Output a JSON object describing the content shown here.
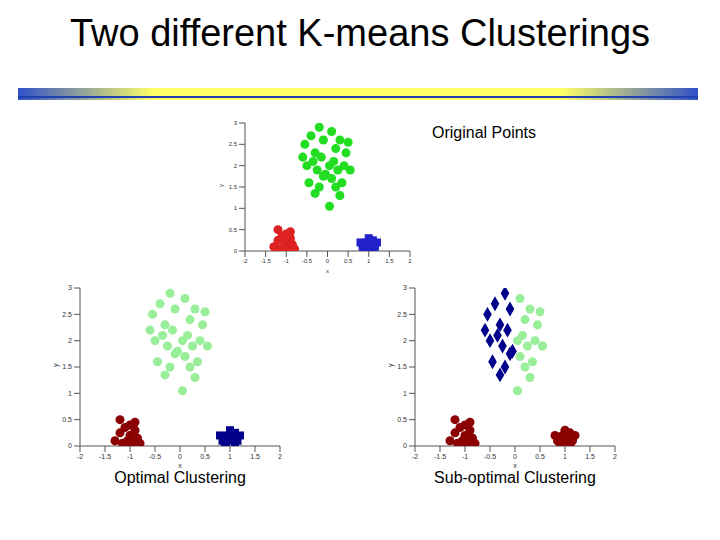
{
  "slide_title": "Two different K-means Clusterings",
  "chart_data": [
    {
      "type": "scatter",
      "title": "Original Points",
      "x_label": "x",
      "y_label": "y",
      "xlim": [
        -2,
        2
      ],
      "ylim": [
        0,
        3
      ],
      "xticks": [
        -2,
        -1.5,
        -1,
        -0.5,
        0,
        0.5,
        1,
        1.5,
        2
      ],
      "yticks": [
        0,
        0.5,
        1,
        1.5,
        2,
        2.5,
        3
      ],
      "series": [
        {
          "color": "#22dd22",
          "marker": "circle",
          "x": [
            -0.55,
            -0.4,
            -0.3,
            -0.2,
            -0.1,
            -0.5,
            -0.35,
            -0.25,
            -0.15,
            -0.05,
            -0.45,
            -0.2,
            -0.1,
            -0.6,
            -0.3,
            0.1,
            0.2,
            0.3,
            0.45,
            0.05,
            0.15,
            0.25,
            0.4,
            0.55,
            0.1,
            0.2,
            0.35,
            0.5,
            0.3,
            0.05
          ],
          "values": [
            2.5,
            2.7,
            2.3,
            2.9,
            2.6,
            2.0,
            2.1,
            1.9,
            2.2,
            1.8,
            1.6,
            1.5,
            1.75,
            2.2,
            1.35,
            2.8,
            2.4,
            2.6,
            2.3,
            2.0,
            2.1,
            1.9,
            2.0,
            1.9,
            1.7,
            1.5,
            1.6,
            2.55,
            1.3,
            1.05
          ]
        },
        {
          "color": "#dd2222",
          "marker": "circle",
          "x": [
            -1.2,
            -1.1,
            -1.0,
            -0.9,
            -1.05,
            -0.95,
            -1.15,
            -0.85,
            -1.0,
            -1.3,
            -0.8,
            -1.1,
            -0.9,
            -1.2
          ],
          "values": [
            0.25,
            0.35,
            0.2,
            0.3,
            0.1,
            0.05,
            0.05,
            0.15,
            0.4,
            0.1,
            0.05,
            0.02,
            0.45,
            0.5
          ]
        },
        {
          "color": "#2222cc",
          "marker": "square",
          "x": [
            0.9,
            1.0,
            1.1,
            0.95,
            1.05,
            1.15,
            0.85,
            1.0,
            1.2,
            0.92,
            1.1,
            0.8
          ],
          "values": [
            0.05,
            0.1,
            0.03,
            0.2,
            0.15,
            0.1,
            0.1,
            0.3,
            0.2,
            0.02,
            0.25,
            0.2
          ]
        }
      ]
    },
    {
      "type": "scatter",
      "title": "Optimal Clustering",
      "x_label": "x",
      "y_label": "y",
      "xlim": [
        -2,
        2
      ],
      "ylim": [
        0,
        3
      ],
      "xticks": [
        -2,
        -1.5,
        -1,
        -0.5,
        0,
        0.5,
        1,
        1.5,
        2
      ],
      "yticks": [
        0,
        0.5,
        1,
        1.5,
        2,
        2.5,
        3
      ],
      "series": [
        {
          "color": "#99ee99",
          "marker": "circle",
          "x": [
            -0.55,
            -0.4,
            -0.3,
            -0.2,
            -0.1,
            -0.5,
            -0.35,
            -0.25,
            -0.15,
            -0.05,
            -0.45,
            -0.2,
            -0.1,
            -0.6,
            -0.3,
            0.1,
            0.2,
            0.3,
            0.45,
            0.05,
            0.15,
            0.25,
            0.4,
            0.55,
            0.1,
            0.2,
            0.35,
            0.5,
            0.3,
            0.05
          ],
          "values": [
            2.5,
            2.7,
            2.3,
            2.9,
            2.6,
            2.0,
            2.1,
            1.9,
            2.2,
            1.8,
            1.6,
            1.5,
            1.75,
            2.2,
            1.35,
            2.8,
            2.4,
            2.6,
            2.3,
            2.0,
            2.1,
            1.9,
            2.0,
            1.9,
            1.7,
            1.5,
            1.6,
            2.55,
            1.3,
            1.05
          ]
        },
        {
          "color": "#8b0000",
          "marker": "circle",
          "x": [
            -1.2,
            -1.1,
            -1.0,
            -0.9,
            -1.05,
            -0.95,
            -1.15,
            -0.85,
            -1.0,
            -1.3,
            -0.8,
            -1.1,
            -0.9,
            -1.2
          ],
          "values": [
            0.25,
            0.35,
            0.2,
            0.3,
            0.1,
            0.05,
            0.05,
            0.15,
            0.4,
            0.1,
            0.05,
            0.02,
            0.45,
            0.5
          ]
        },
        {
          "color": "#00008b",
          "marker": "square",
          "x": [
            0.9,
            1.0,
            1.1,
            0.95,
            1.05,
            1.15,
            0.85,
            1.0,
            1.2,
            0.92,
            1.1,
            0.8
          ],
          "values": [
            0.05,
            0.1,
            0.03,
            0.2,
            0.15,
            0.1,
            0.1,
            0.3,
            0.2,
            0.02,
            0.25,
            0.2
          ]
        }
      ]
    },
    {
      "type": "scatter",
      "title": "Sub-optimal Clustering",
      "x_label": "x",
      "y_label": "y",
      "xlim": [
        -2,
        2
      ],
      "ylim": [
        0,
        3
      ],
      "xticks": [
        -2,
        -1.5,
        -1,
        -0.5,
        0,
        0.5,
        1,
        1.5,
        2
      ],
      "yticks": [
        0,
        0.5,
        1,
        1.5,
        2,
        2.5,
        3
      ],
      "series": [
        {
          "color": "#00008b",
          "marker": "diamond",
          "x": [
            -0.55,
            -0.4,
            -0.3,
            -0.2,
            -0.1,
            -0.5,
            -0.35,
            -0.25,
            -0.15,
            -0.05,
            -0.45,
            -0.2,
            -0.1,
            -0.6,
            -0.3
          ],
          "values": [
            2.5,
            2.7,
            2.3,
            2.9,
            2.6,
            2.0,
            2.1,
            1.9,
            2.2,
            1.8,
            1.6,
            1.5,
            1.75,
            2.2,
            1.35
          ]
        },
        {
          "color": "#99ee99",
          "marker": "circle",
          "x": [
            0.1,
            0.2,
            0.3,
            0.45,
            0.05,
            0.15,
            0.25,
            0.4,
            0.55,
            0.1,
            0.2,
            0.35,
            0.5,
            0.3,
            0.05
          ],
          "values": [
            2.8,
            2.4,
            2.6,
            2.3,
            2.0,
            2.1,
            1.9,
            2.0,
            1.9,
            1.7,
            1.5,
            1.6,
            2.55,
            1.3,
            1.05
          ]
        },
        {
          "color": "#8b0000",
          "marker": "circle",
          "x": [
            -1.2,
            -1.1,
            -1.0,
            -0.9,
            -1.05,
            -0.95,
            -1.15,
            -0.85,
            -1.0,
            -1.3,
            -0.8,
            -1.1,
            -0.9,
            -1.2,
            0.9,
            1.0,
            1.1,
            0.95,
            1.05,
            1.15,
            0.85,
            1.0,
            1.2,
            0.92,
            1.1,
            0.8
          ],
          "values": [
            0.25,
            0.35,
            0.2,
            0.3,
            0.1,
            0.05,
            0.05,
            0.15,
            0.4,
            0.1,
            0.05,
            0.02,
            0.45,
            0.5,
            0.05,
            0.1,
            0.03,
            0.2,
            0.15,
            0.1,
            0.1,
            0.3,
            0.2,
            0.02,
            0.25,
            0.2
          ]
        }
      ]
    }
  ]
}
